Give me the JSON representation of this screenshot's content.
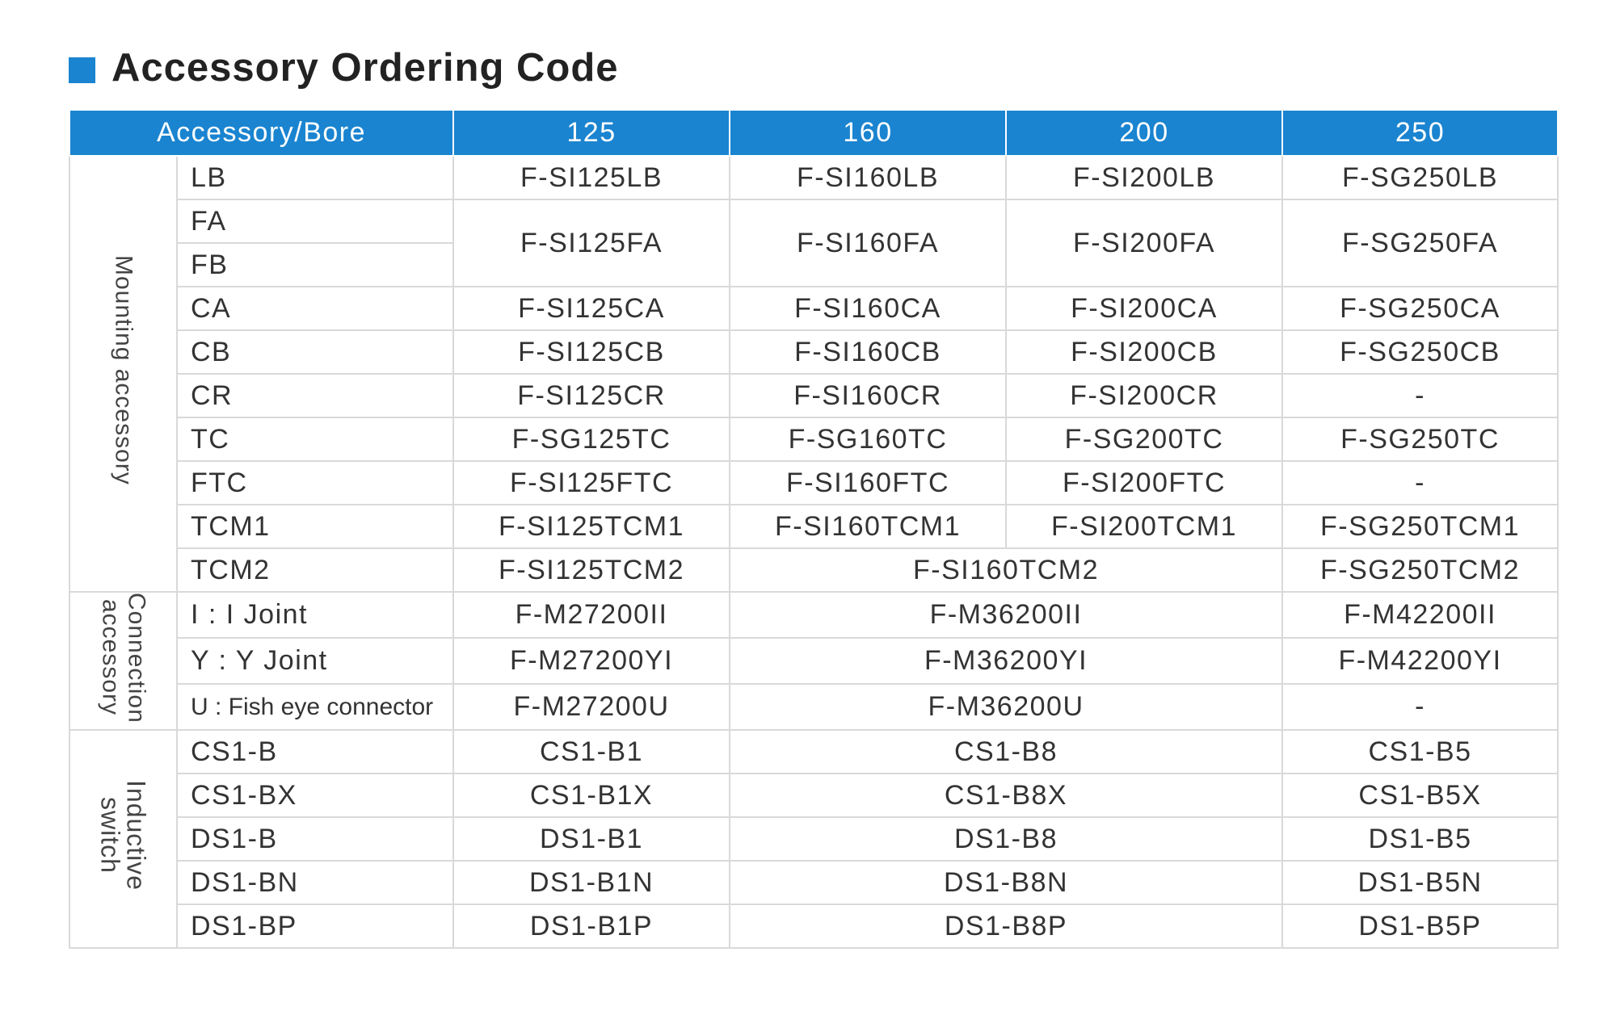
{
  "title": "Accessory Ordering Code",
  "table": {
    "header": [
      "Accessory/Bore",
      "125",
      "160",
      "200",
      "250"
    ],
    "groups": [
      "Mounting accessory",
      "Connection accessory",
      "Inductive switch"
    ],
    "rows": [
      [
        "LB",
        "F-SI125LB",
        "F-SI160LB",
        "F-SI200LB",
        "F-SG250LB"
      ],
      [
        "FA",
        "F-SI125FA",
        "F-SI160FA",
        "F-SI200FA",
        "F-SG250FA"
      ],
      [
        "FB"
      ],
      [
        "CA",
        "F-SI125CA",
        "F-SI160CA",
        "F-SI200CA",
        "F-SG250CA"
      ],
      [
        "CB",
        "F-SI125CB",
        "F-SI160CB",
        "F-SI200CB",
        "F-SG250CB"
      ],
      [
        "CR",
        "F-SI125CR",
        "F-SI160CR",
        "F-SI200CR",
        "-"
      ],
      [
        "TC",
        "F-SG125TC",
        "F-SG160TC",
        "F-SG200TC",
        "F-SG250TC"
      ],
      [
        "FTC",
        "F-SI125FTC",
        "F-SI160FTC",
        "F-SI200FTC",
        "-"
      ],
      [
        "TCM1",
        "F-SI125TCM1",
        "F-SI160TCM1",
        "F-SI200TCM1",
        "F-SG250TCM1"
      ],
      [
        "TCM2",
        "F-SI125TCM2",
        "F-SI160TCM2",
        "F-SG250TCM2"
      ],
      [
        "I : I Joint",
        "F-M27200II",
        "F-M36200II",
        "F-M42200II"
      ],
      [
        "Y : Y Joint",
        "F-M27200YI",
        "F-M36200YI",
        "F-M42200YI"
      ],
      [
        "U : Fish eye connector",
        "F-M27200U",
        "F-M36200U",
        "-"
      ],
      [
        "CS1-B",
        "CS1-B1",
        "CS1-B8",
        "CS1-B5"
      ],
      [
        "CS1-BX",
        "CS1-B1X",
        "CS1-B8X",
        "CS1-B5X"
      ],
      [
        "DS1-B",
        "DS1-B1",
        "DS1-B8",
        "DS1-B5"
      ],
      [
        "DS1-BN",
        "DS1-B1N",
        "DS1-B8N",
        "DS1-B5N"
      ],
      [
        "DS1-BP",
        "DS1-B1P",
        "DS1-B8P",
        "DS1-B5P"
      ]
    ]
  }
}
